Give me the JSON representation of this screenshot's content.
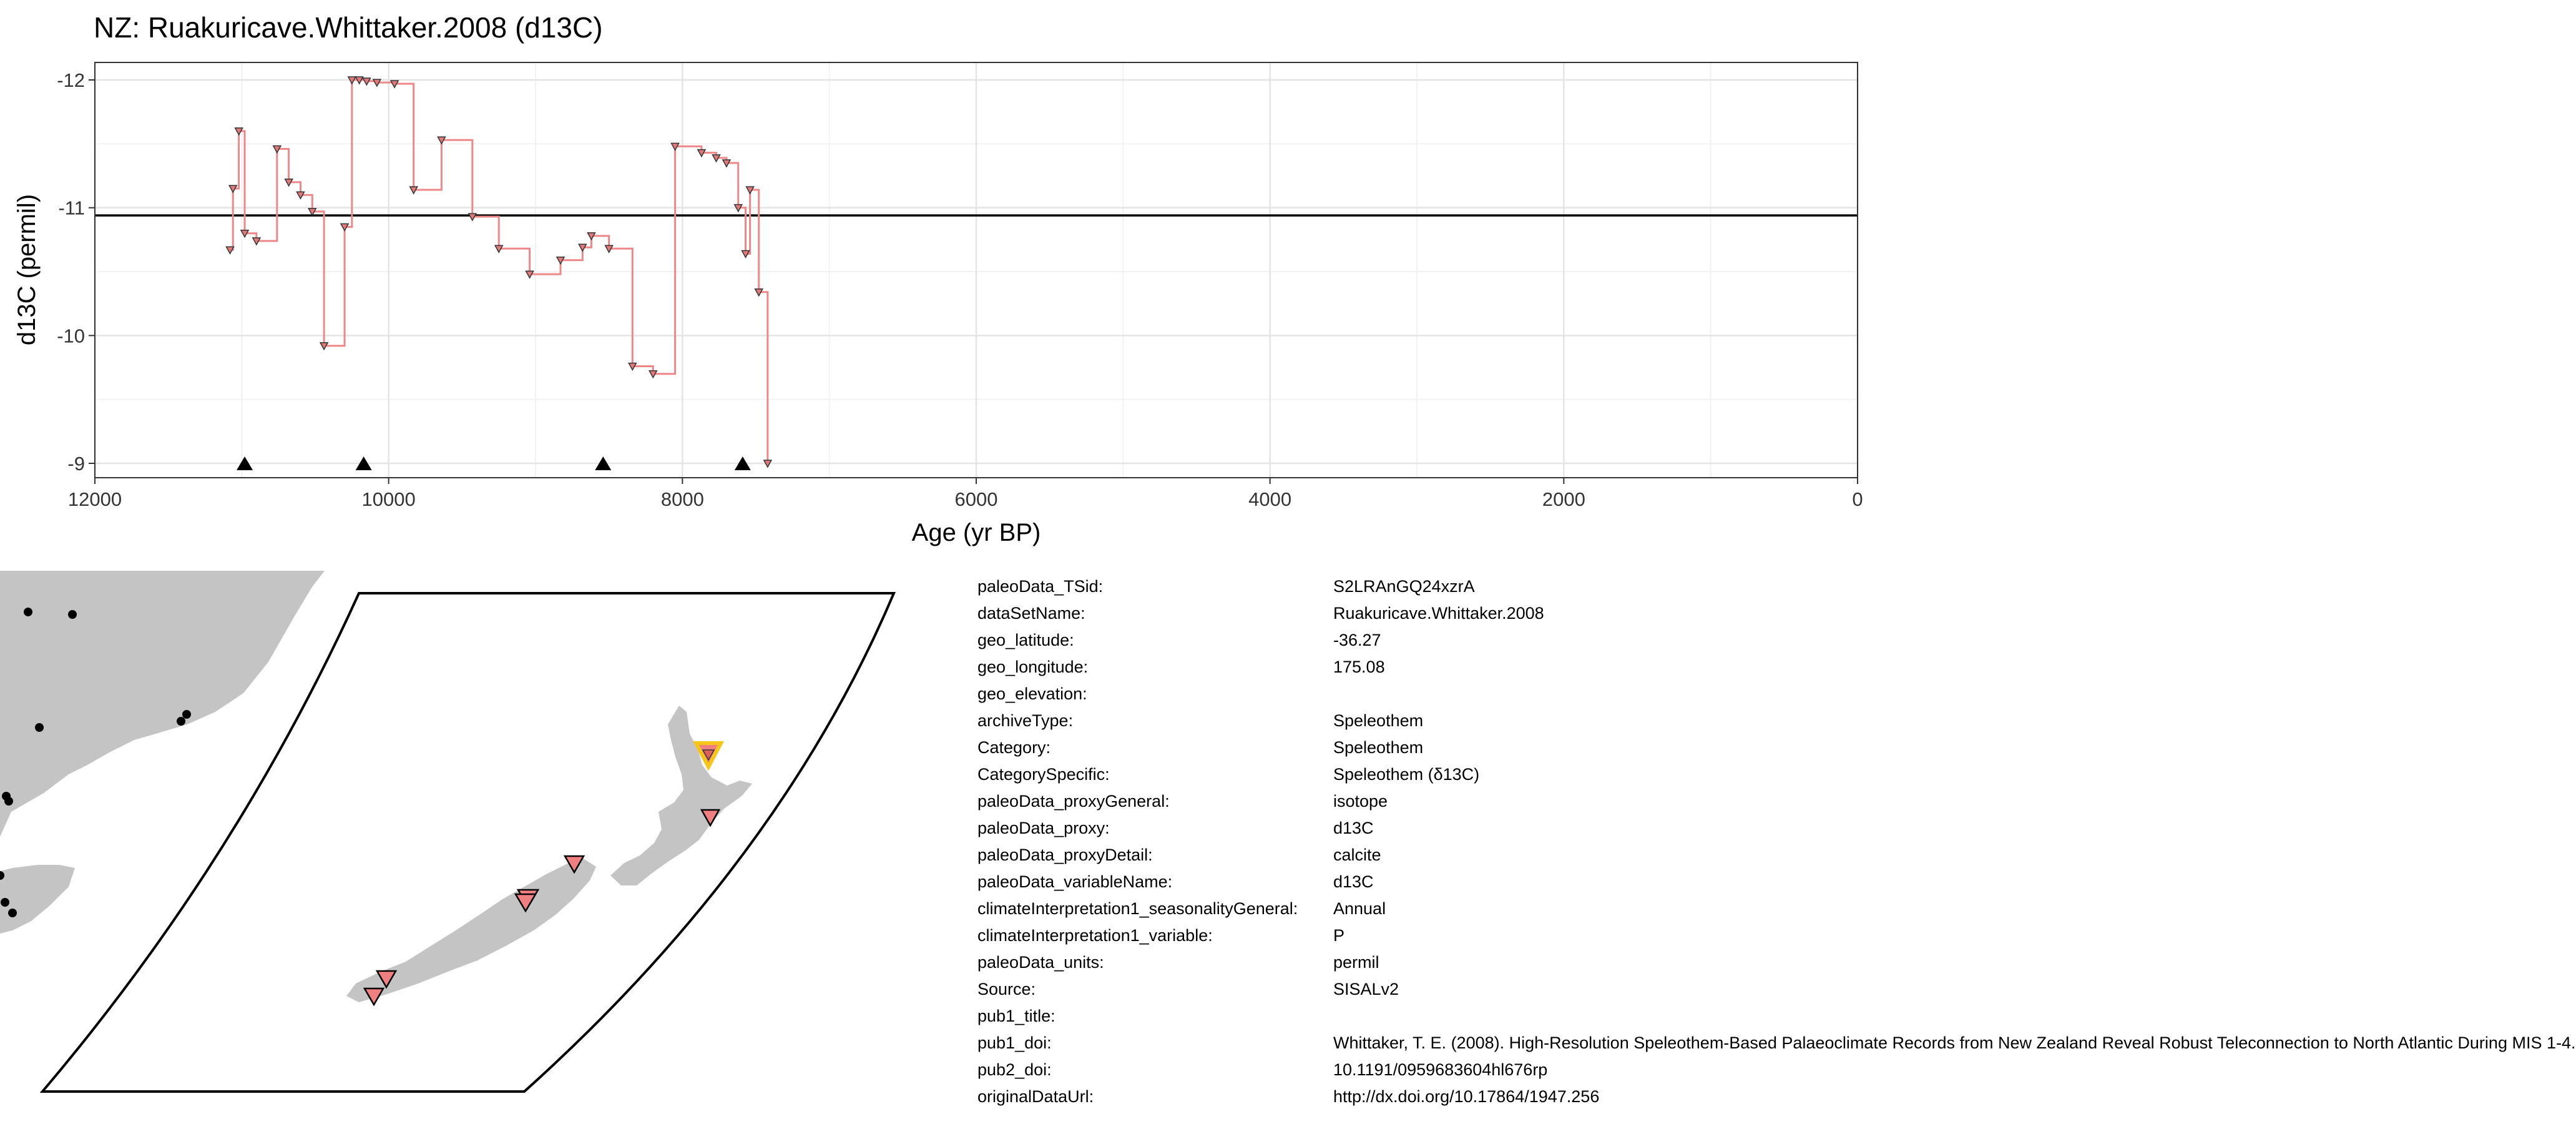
{
  "chart_data": {
    "type": "line",
    "title": "NZ: Ruakuricave.Whittaker.2008 (d13C)",
    "xlabel": "Age (yr BP)",
    "ylabel": "d13C (permil)",
    "xlim": [
      12000,
      0
    ],
    "ylim": [
      -8.9,
      -12.15
    ],
    "y_reversed": true,
    "x_reversed": true,
    "x_ticks": [
      12000,
      10000,
      8000,
      6000,
      4000,
      2000,
      0
    ],
    "x_tick_labels": [
      "12000",
      "10000",
      "8000",
      "6000",
      "4000",
      "2000",
      "0"
    ],
    "y_ticks": [
      -12,
      -11,
      -10,
      -9
    ],
    "y_tick_labels": [
      "-12",
      "-11",
      "-10",
      "-9"
    ],
    "grid": true,
    "reference_line_y": -10.94,
    "series": [
      {
        "style": "step",
        "color": "#ee8888",
        "x": [
          11080,
          11060,
          11020,
          10980,
          10900,
          10760,
          10680,
          10600,
          10520,
          10440,
          10300,
          10250,
          10200,
          10150,
          10080,
          9960,
          9830,
          9640,
          9430,
          9250,
          9040,
          8830,
          8680,
          8620,
          8500,
          8340,
          8200,
          8050,
          7870,
          7770,
          7700,
          7620,
          7570,
          7540,
          7480,
          7420
        ],
        "y": [
          -10.67,
          -11.15,
          -11.6,
          -10.8,
          -10.74,
          -11.46,
          -11.2,
          -11.1,
          -10.97,
          -9.92,
          -10.85,
          -12.0,
          -12.0,
          -11.99,
          -11.98,
          -11.97,
          -11.14,
          -11.53,
          -10.93,
          -10.68,
          -10.48,
          -10.59,
          -10.69,
          -10.78,
          -10.68,
          -9.76,
          -9.7,
          -11.48,
          -11.43,
          -11.39,
          -11.35,
          -11.0,
          -10.64,
          -11.14,
          -10.34,
          -9.0
        ]
      }
    ],
    "markers_bottom": [
      10980,
      10170,
      8540,
      7590
    ],
    "markers_bottom_y": -9.0
  },
  "map": {
    "inset_points": [
      {
        "lon": 175.08,
        "lat": -36.27,
        "highlight": true
      },
      {
        "lon": 176.9,
        "lat": -39.2
      },
      {
        "lon": 172.6,
        "lat": -41.2
      },
      {
        "lon": 171.5,
        "lat": -42.0
      },
      {
        "lon": 171.3,
        "lat": -42.1
      },
      {
        "lon": 168.2,
        "lat": -45.3
      },
      {
        "lon": 167.8,
        "lat": -45.6
      }
    ],
    "colors": {
      "land": "#c4c4c4",
      "marker": "#f08080",
      "highlight": "#f5c518",
      "dot": "#000000"
    }
  },
  "metadata": [
    {
      "key": "paleoData_TSid:",
      "value": "S2LRAnGQ24xzrA"
    },
    {
      "key": "dataSetName:",
      "value": "Ruakuricave.Whittaker.2008"
    },
    {
      "key": "geo_latitude:",
      "value": "-36.27"
    },
    {
      "key": "geo_longitude:",
      "value": "175.08"
    },
    {
      "key": "geo_elevation:",
      "value": ""
    },
    {
      "key": "archiveType:",
      "value": "Speleothem"
    },
    {
      "key": "Category:",
      "value": "Speleothem"
    },
    {
      "key": "CategorySpecific:",
      "value": "Speleothem (δ13C)"
    },
    {
      "key": "paleoData_proxyGeneral:",
      "value": "isotope"
    },
    {
      "key": "paleoData_proxy:",
      "value": "d13C"
    },
    {
      "key": "paleoData_proxyDetail:",
      "value": "calcite"
    },
    {
      "key": "paleoData_variableName:",
      "value": "d13C"
    },
    {
      "key": "climateInterpretation1_seasonalityGeneral:",
      "value": "Annual"
    },
    {
      "key": "climateInterpretation1_variable:",
      "value": "P"
    },
    {
      "key": "paleoData_units:",
      "value": "permil"
    },
    {
      "key": "Source:",
      "value": "SISALv2"
    },
    {
      "key": "pub1_title:",
      "value": ""
    },
    {
      "key": "pub1_doi:",
      "value": "Whittaker, T. E. (2008). High-Resolution Speleothem-Based Palaeoclimate Records from New Zealand Reveal Robust Teleconnection to North Atlantic During MIS 1-4."
    },
    {
      "key": "pub2_doi:",
      "value": "10.1191/0959683604hl676rp"
    },
    {
      "key": "originalDataUrl:",
      "value": "http://dx.doi.org/10.17864/1947.256"
    }
  ]
}
